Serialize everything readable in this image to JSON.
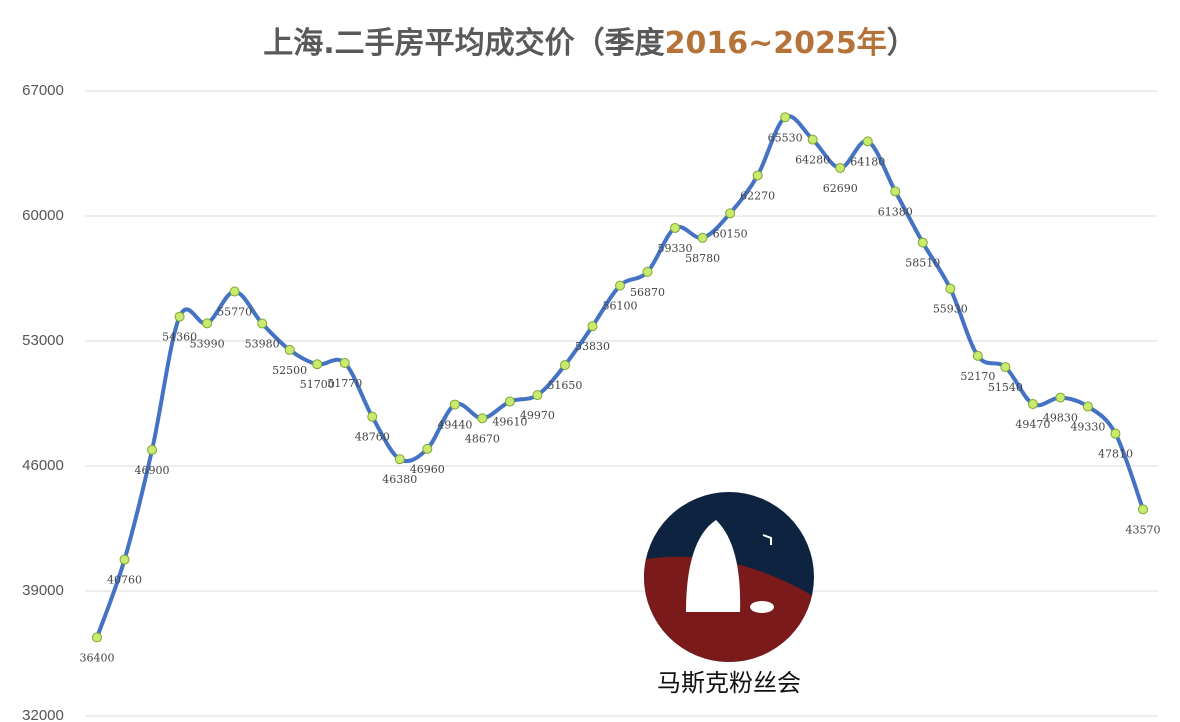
{
  "chart_data": {
    "type": "line",
    "title": {
      "main": "上海.二手房平均成交价（季度",
      "highlight": "2016~2025年",
      "end": "）"
    },
    "watermark": "马斯克粉丝会",
    "categories": [
      null,
      null,
      null,
      null,
      null,
      null,
      null,
      null,
      null,
      null,
      null,
      null,
      null,
      null,
      null,
      null,
      null,
      null,
      null,
      null,
      null,
      null,
      null,
      null,
      null,
      null,
      null,
      null,
      null,
      null,
      null,
      null,
      null,
      null,
      null,
      null,
      null,
      null,
      null
    ],
    "series": [
      {
        "name": null,
        "color": "#4472c4",
        "marker_color": "#c8ea6e",
        "values": [
          36400,
          40760,
          46900,
          54360,
          53990,
          55770,
          53980,
          52500,
          51700,
          51770,
          48760,
          46380,
          46960,
          49440,
          48670,
          49610,
          49970,
          51650,
          53830,
          56100,
          56870,
          59330,
          58780,
          60150,
          62270,
          65530,
          64280,
          62690,
          64180,
          61380,
          58510,
          55930,
          52170,
          51540,
          49470,
          49830,
          49330,
          47810,
          43570
        ]
      }
    ],
    "ylim": [
      32000,
      67000
    ],
    "yticks": [
      32000,
      39000,
      46000,
      53000,
      60000,
      67000
    ],
    "grid": true
  }
}
